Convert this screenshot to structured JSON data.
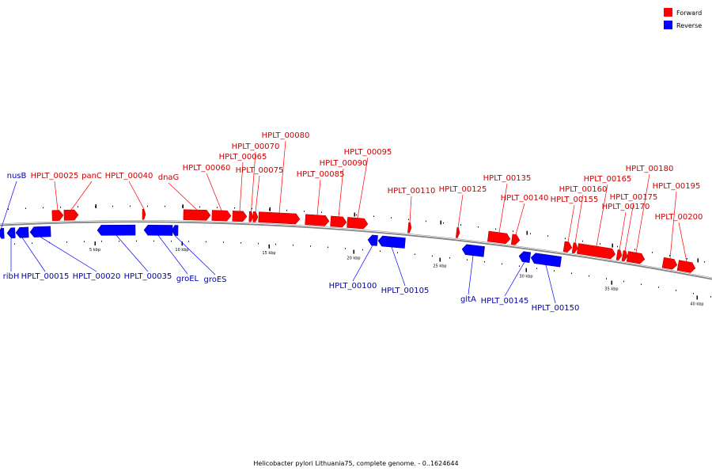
{
  "legend": {
    "forward_label": "Forward",
    "reverse_label": "Reverse",
    "forward_color": "#ff0000",
    "reverse_color": "#0000ff"
  },
  "caption": "Helicobacter pylori Lithuania75, complete genome. - 0..1624644",
  "backbone_color": "#808080",
  "ticks": [
    {
      "label": "5 kbp"
    },
    {
      "label": "10 kbp"
    },
    {
      "label": "15 kbp"
    },
    {
      "label": "20 kbp"
    },
    {
      "label": "25 kbp"
    },
    {
      "label": "30 kbp"
    },
    {
      "label": "35 kbp"
    },
    {
      "label": "40 kbp"
    }
  ],
  "forward_genes": [
    {
      "name": "HPLT_00025",
      "kind": "arrow"
    },
    {
      "name": "panC",
      "kind": "arrow"
    },
    {
      "name": "HPLT_00040",
      "kind": "arrow"
    },
    {
      "name": "dnaG",
      "kind": "arrow"
    },
    {
      "name": "HPLT_00060",
      "kind": "arrow"
    },
    {
      "name": "HPLT_00065",
      "kind": "arrow"
    },
    {
      "name": "HPLT_00070",
      "kind": "arrow"
    },
    {
      "name": "HPLT_00075",
      "kind": "arrow"
    },
    {
      "name": "HPLT_00080",
      "kind": "arrow"
    },
    {
      "name": "HPLT_00085",
      "kind": "arrow"
    },
    {
      "name": "HPLT_00090",
      "kind": "arrow"
    },
    {
      "name": "HPLT_00095",
      "kind": "arrow"
    },
    {
      "name": "HPLT_00110",
      "kind": "arrow"
    },
    {
      "name": "HPLT_00125",
      "kind": "arrow"
    },
    {
      "name": "HPLT_00135",
      "kind": "arrow"
    },
    {
      "name": "HPLT_00140",
      "kind": "arrow"
    },
    {
      "name": "HPLT_00155",
      "kind": "arrow"
    },
    {
      "name": "HPLT_00160",
      "kind": "arrow"
    },
    {
      "name": "HPLT_00165",
      "kind": "arrow"
    },
    {
      "name": "HPLT_00170",
      "kind": "arrow"
    },
    {
      "name": "HPLT_00175",
      "kind": "arrow"
    },
    {
      "name": "HPLT_00180",
      "kind": "arrow"
    },
    {
      "name": "HPLT_00195",
      "kind": "arrow"
    },
    {
      "name": "HPLT_00200",
      "kind": "arrow"
    }
  ],
  "reverse_genes": [
    {
      "name": "nusB"
    },
    {
      "name": "ribH"
    },
    {
      "name": "HPLT_00015"
    },
    {
      "name": "HPLT_00020"
    },
    {
      "name": "HPLT_00035"
    },
    {
      "name": "groEL"
    },
    {
      "name": "groES"
    },
    {
      "name": "HPLT_00100"
    },
    {
      "name": "HPLT_00105"
    },
    {
      "name": "gltA"
    },
    {
      "name": "HPLT_00145"
    },
    {
      "name": "HPLT_00150"
    }
  ]
}
